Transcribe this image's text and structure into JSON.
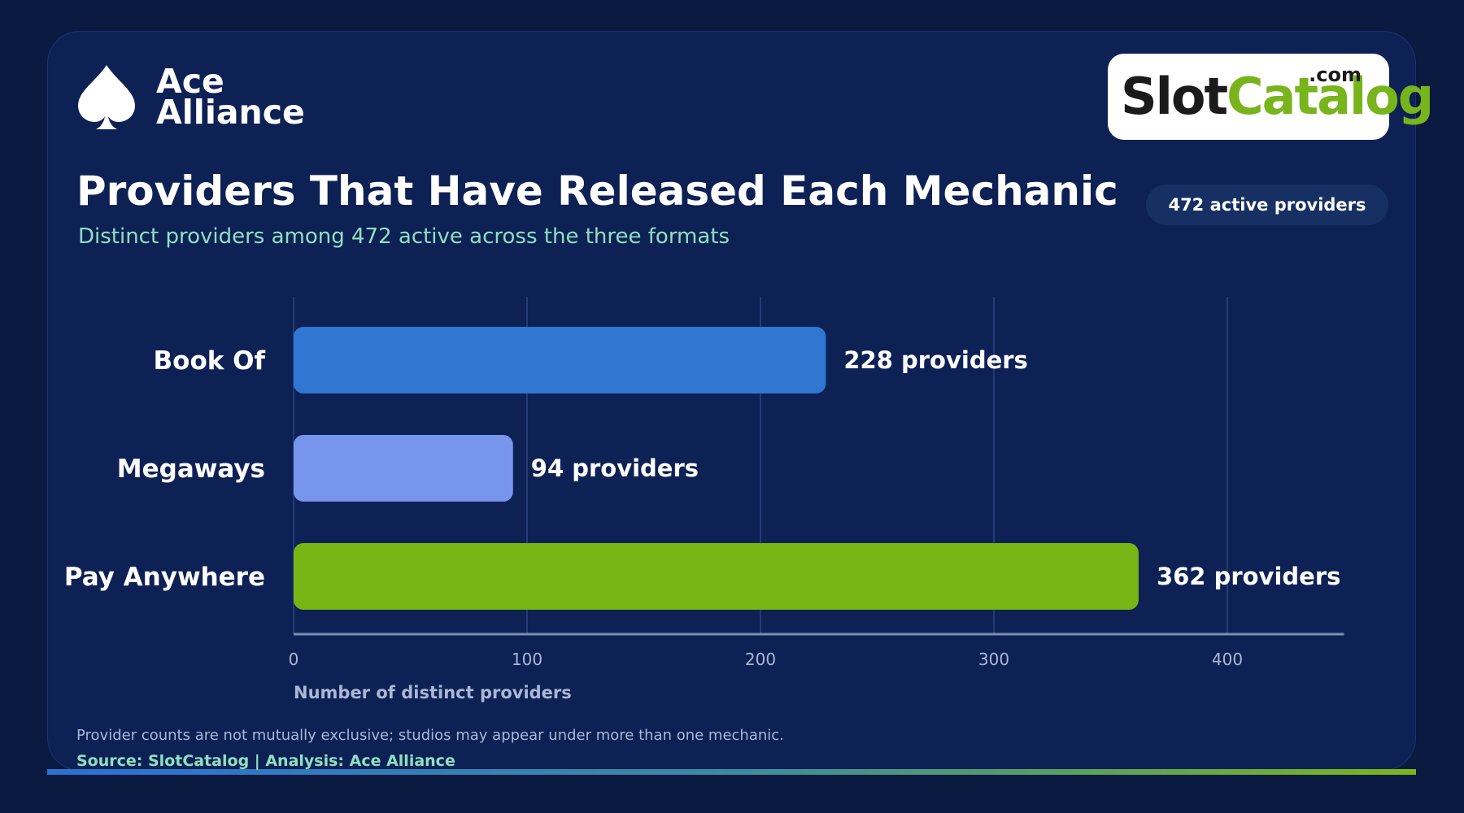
{
  "brand": {
    "name_line1": "Ace",
    "name_line2": "Alliance"
  },
  "partner_logo": {
    "text_dark": "Slot",
    "text_green": "Catalog",
    "suffix": ".com"
  },
  "header": {
    "title": "Providers That Have Released Each Mechanic",
    "subtitle": "Distinct providers among 472 active across the three formats",
    "badge": "472 active providers"
  },
  "chart_data": {
    "type": "bar",
    "orientation": "horizontal",
    "categories": [
      "Book Of",
      "Megaways",
      "Pay Anywhere"
    ],
    "values": [
      228,
      94,
      362
    ],
    "value_labels": [
      "228 providers",
      "94 providers",
      "362 providers"
    ],
    "colors": [
      "#3077d1",
      "#7795ec",
      "#77b614"
    ],
    "xlabel": "Number of distinct providers",
    "ylabel": "",
    "xlim": [
      0,
      450
    ],
    "xticks": [
      0,
      100,
      200,
      300,
      400
    ],
    "grid": true
  },
  "footer": {
    "note": "Provider counts are not mutually exclusive; studios may appear under more than one mechanic.",
    "source": "Source: SlotCatalog  |  Analysis: Ace Alliance"
  },
  "colors": {
    "background": "#0a1a40",
    "card": "#0d2155",
    "accent_green": "#8fe0c0"
  }
}
